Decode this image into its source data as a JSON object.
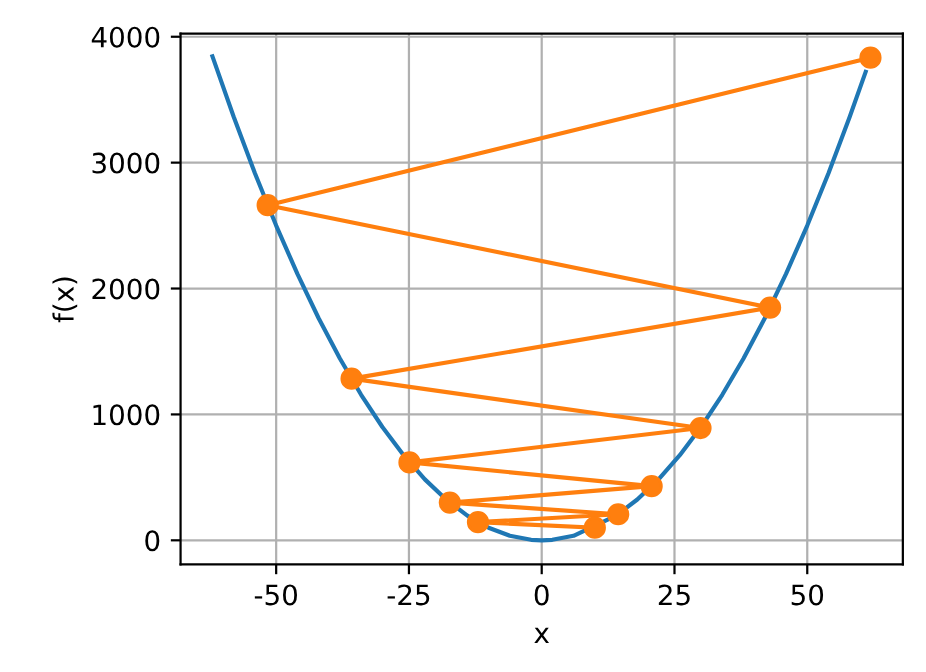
{
  "chart_data": {
    "type": "line",
    "xlabel": "x",
    "ylabel": "f(x)",
    "xlim": [
      -68,
      68
    ],
    "ylim": [
      -192,
      4025
    ],
    "xticks": [
      -50,
      -25,
      0,
      25,
      50
    ],
    "yticks": [
      0,
      1000,
      2000,
      3000,
      4000
    ],
    "grid": true,
    "series": [
      {
        "color": "#1f77b4",
        "marker": "none",
        "x": [
          -62,
          -58,
          -54,
          -50,
          -46,
          -42,
          -38,
          -34,
          -30,
          -26,
          -22,
          -18,
          -14,
          -10,
          -6,
          -2,
          0,
          2,
          6,
          14,
          18,
          22,
          26,
          30,
          34,
          38,
          42,
          46,
          50,
          54,
          58,
          61
        ],
        "values": [
          3844,
          3364,
          2916,
          2500,
          2116,
          1764,
          1444,
          1156,
          900,
          676,
          484,
          324,
          196,
          100,
          36,
          4,
          0,
          4,
          36,
          196,
          324,
          484,
          676,
          900,
          1156,
          1444,
          1764,
          2116,
          2500,
          2916,
          3364,
          3721
        ]
      },
      {
        "color": "#ff7f0e",
        "marker": "circle",
        "x": [
          10,
          -12,
          14.4,
          -17.3,
          20.7,
          -24.9,
          29.9,
          -35.8,
          43,
          -51.6,
          61.9
        ],
        "values": [
          100,
          144,
          207,
          299,
          430,
          619,
          892,
          1284,
          1849,
          2662,
          3834
        ]
      }
    ]
  }
}
